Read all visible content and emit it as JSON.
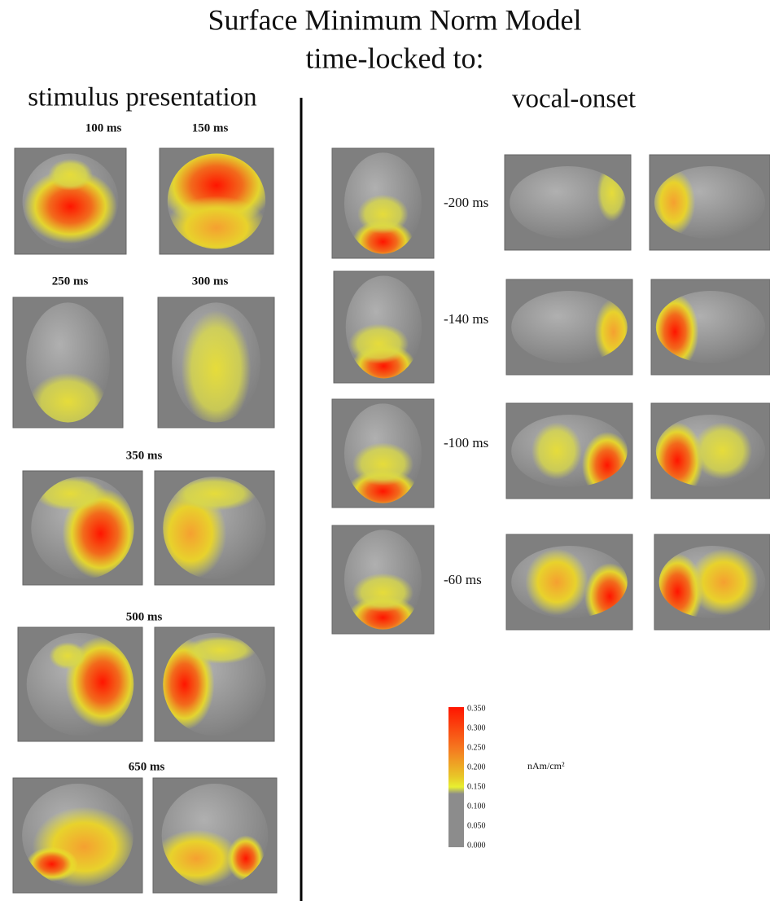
{
  "title": [
    "Surface Minimum Norm Model",
    "time-locked to:"
  ],
  "left": {
    "heading": "stimulus presentation",
    "labels": [
      "100 ms",
      "150 ms",
      "250 ms",
      "300 ms",
      "350 ms",
      "500 ms",
      "650 ms"
    ]
  },
  "right": {
    "heading": "vocal-onset",
    "labels": [
      "-200 ms",
      "-140 ms",
      "-100 ms",
      "-60 ms"
    ]
  },
  "colorbar": {
    "ticks": [
      "0.350",
      "0.300",
      "0.250",
      "0.200",
      "0.150",
      "0.100",
      "0.050",
      "0.000"
    ],
    "unit": "nAm/cm²"
  }
}
